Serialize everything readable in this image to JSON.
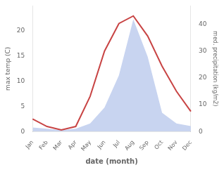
{
  "chart_data": {
    "type": "line",
    "xlabel": "date (month)",
    "ylabel": "max temp (C)",
    "y2label": "med. precipitation (kg/m2)",
    "categories": [
      "Jan",
      "Feb",
      "Mar",
      "Apr",
      "May",
      "Jun",
      "Jul",
      "Aug",
      "Sep",
      "Oct",
      "Nov",
      "Dec"
    ],
    "series": [
      {
        "type": "area",
        "axis": "y2",
        "color": "#c8d4f0",
        "values": [
          1.5,
          1.0,
          0.5,
          1.0,
          3.0,
          9.0,
          21.0,
          42.0,
          28.0,
          7.0,
          3.0,
          2.0
        ]
      },
      {
        "type": "line",
        "color": "#c84444",
        "values": [
          2.5,
          1.0,
          0.3,
          1.0,
          7.0,
          16.0,
          21.5,
          23.0,
          19.0,
          13.0,
          8.0,
          4.0
        ]
      }
    ],
    "ylim": [
      0,
      25
    ],
    "yticks": [
      0,
      5,
      10,
      15,
      20
    ],
    "y2lim": [
      0,
      47
    ],
    "y2ticks": [
      0,
      10,
      20,
      30,
      40
    ],
    "grid": false
  }
}
